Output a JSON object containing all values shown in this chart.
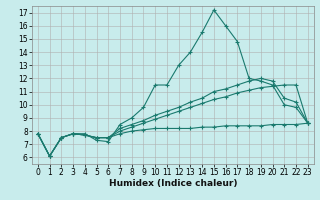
{
  "xlabel": "Humidex (Indice chaleur)",
  "background_color": "#c8ecec",
  "line_color": "#1a7a6e",
  "xlim": [
    -0.5,
    23.5
  ],
  "ylim": [
    5.5,
    17.5
  ],
  "xticks": [
    0,
    1,
    2,
    3,
    4,
    5,
    6,
    7,
    8,
    9,
    10,
    11,
    12,
    13,
    14,
    15,
    16,
    17,
    18,
    19,
    20,
    21,
    22,
    23
  ],
  "yticks": [
    6,
    7,
    8,
    9,
    10,
    11,
    12,
    13,
    14,
    15,
    16,
    17
  ],
  "line1_y": [
    7.8,
    6.1,
    7.5,
    7.8,
    7.8,
    7.3,
    7.2,
    8.5,
    9.0,
    9.8,
    11.5,
    11.5,
    13.0,
    14.0,
    15.5,
    17.2,
    16.0,
    14.8,
    12.0,
    11.8,
    11.5,
    10.0,
    9.8,
    8.6
  ],
  "line2_y": [
    7.8,
    6.1,
    7.5,
    7.8,
    7.7,
    7.5,
    7.5,
    8.2,
    8.5,
    8.8,
    9.2,
    9.5,
    9.8,
    10.2,
    10.5,
    11.0,
    11.2,
    11.5,
    11.8,
    12.0,
    11.8,
    10.5,
    10.2,
    8.6
  ],
  "line3_y": [
    7.8,
    6.1,
    7.5,
    7.8,
    7.7,
    7.5,
    7.5,
    8.0,
    8.3,
    8.6,
    8.9,
    9.2,
    9.5,
    9.8,
    10.1,
    10.4,
    10.6,
    10.9,
    11.1,
    11.3,
    11.4,
    11.5,
    11.5,
    8.6
  ],
  "line4_y": [
    7.8,
    6.1,
    7.5,
    7.8,
    7.7,
    7.5,
    7.5,
    7.8,
    8.0,
    8.1,
    8.2,
    8.2,
    8.2,
    8.2,
    8.3,
    8.3,
    8.4,
    8.4,
    8.4,
    8.4,
    8.5,
    8.5,
    8.5,
    8.6
  ]
}
